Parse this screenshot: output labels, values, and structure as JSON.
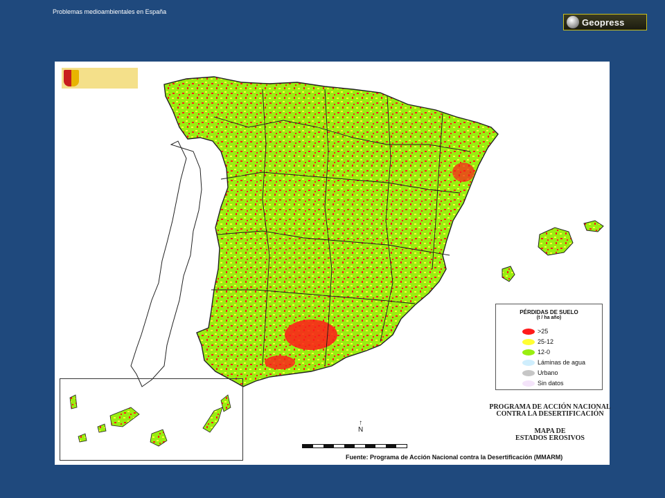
{
  "header": {
    "slide_title": "Problemas medioambientales en España",
    "logo_text": "Geopress"
  },
  "map": {
    "legend": {
      "title": "PÉRDIDAS DE SUELO",
      "unit": "(t / ha año)",
      "items": [
        {
          "label": ">25",
          "color": "#ff1a1a"
        },
        {
          "label": "25-12",
          "color": "#ffff33"
        },
        {
          "label": "12-0",
          "color": "#99ee11"
        },
        {
          "label": "Láminas de agua",
          "color": "#cfeefd"
        },
        {
          "label": "Urbano",
          "color": "#c6c6c6"
        },
        {
          "label": "Sin datos",
          "color": "#f4e4fa"
        }
      ]
    },
    "program_line1": "PROGRAMA DE ACCIÓN NACIONAL",
    "program_line2": "CONTRA LA DESERTIFICACIÓN",
    "map_title_line1": "MAPA DE",
    "map_title_line2": "ESTADOS EROSIVOS",
    "north_label": "N",
    "source": "Fuente: Programa de Acción Nacional contra la Desertificación (MMARM)",
    "colors": {
      "land": "#99ee11",
      "high_erosion": "#ff1a1a",
      "medium_erosion": "#ffff33",
      "border": "#1a1a1a"
    }
  }
}
